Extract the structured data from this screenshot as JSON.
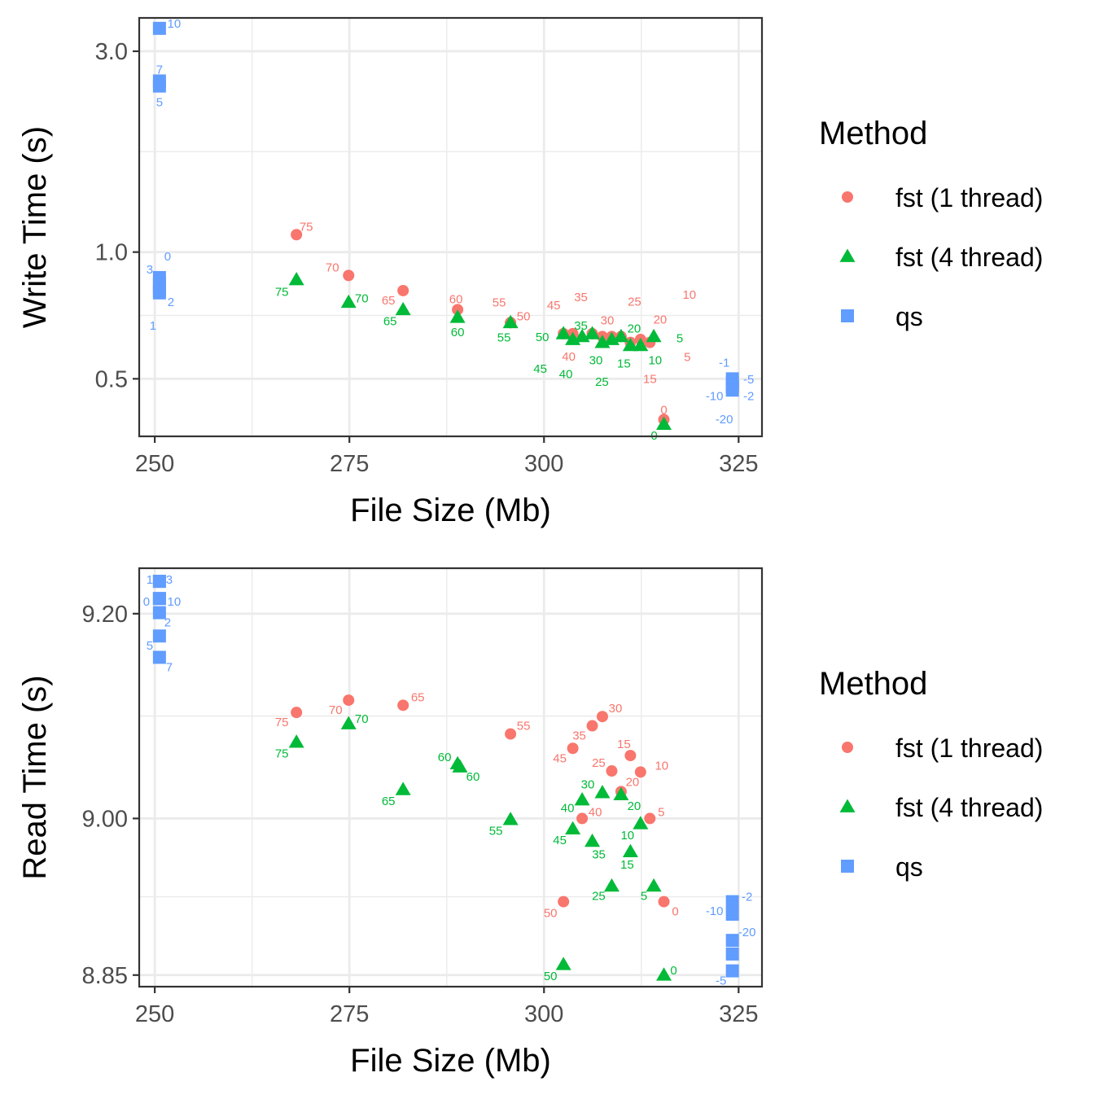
{
  "chart_data": [
    {
      "type": "scatter",
      "title": "",
      "xlabel": "File Size (Mb)",
      "ylabel": "Write Time (s)",
      "scale_y": "log",
      "xlim": [
        248,
        328
      ],
      "ylim": [
        0.365,
        3.6
      ],
      "x_ticks": [
        250,
        275,
        300,
        325
      ],
      "x_tick_labels": [
        "250",
        "275",
        "300",
        "325"
      ],
      "y_ticks": [
        0.5,
        1.0,
        3.0
      ],
      "y_tick_labels": [
        "0.5",
        "1.0",
        "3.0"
      ],
      "grid": true,
      "legend": {
        "title": "Method",
        "position": "right"
      },
      "series": [
        {
          "name": "fst (1 thread)",
          "color": "#F8766D",
          "shape": "circle",
          "points": [
            {
              "x": 268.2,
              "y": 1.1,
              "label": "75",
              "dx": 12,
              "dy": -10
            },
            {
              "x": 274.9,
              "y": 0.88,
              "label": "70",
              "dx": -20,
              "dy": -10
            },
            {
              "x": 281.9,
              "y": 0.81,
              "label": "65",
              "dx": -18,
              "dy": 12
            },
            {
              "x": 288.9,
              "y": 0.73,
              "label": "60",
              "dx": -2,
              "dy": -13
            },
            {
              "x": 295.7,
              "y": 0.68,
              "label": "55",
              "dx": -14,
              "dy": -25
            },
            {
              "x": 295.7,
              "y": 0.68,
              "label": "50",
              "dx": 16,
              "dy": -8
            },
            {
              "x": 302.5,
              "y": 0.64,
              "label": "45",
              "dx": -12,
              "dy": -35
            },
            {
              "x": 303.7,
              "y": 0.64,
              "label": "40",
              "dx": -5,
              "dy": 28
            },
            {
              "x": 306.2,
              "y": 0.64,
              "label": "35",
              "dx": -14,
              "dy": -45
            },
            {
              "x": 307.5,
              "y": 0.63,
              "label": "30",
              "dx": 6,
              "dy": -20
            },
            {
              "x": 308.7,
              "y": 0.63,
              "label": "25",
              "dx": 28,
              "dy": -43
            },
            {
              "x": 309.9,
              "y": 0.63,
              "label": "20",
              "dx": 48,
              "dy": -21
            },
            {
              "x": 311.1,
              "y": 0.61,
              "label": "15",
              "dx": 24,
              "dy": 45
            },
            {
              "x": 312.4,
              "y": 0.62,
              "label": "10",
              "dx": 60,
              "dy": -55
            },
            {
              "x": 313.6,
              "y": 0.61,
              "label": "5",
              "dx": 46,
              "dy": 18
            },
            {
              "x": 315.4,
              "y": 0.4,
              "label": "0",
              "dx": 0,
              "dy": -12
            }
          ]
        },
        {
          "name": "fst (4 thread)",
          "color": "#00BA38",
          "shape": "triangle",
          "points": [
            {
              "x": 268.2,
              "y": 0.86,
              "label": "75",
              "dx": -18,
              "dy": 15
            },
            {
              "x": 274.9,
              "y": 0.76,
              "label": "70",
              "dx": 16,
              "dy": -5
            },
            {
              "x": 281.9,
              "y": 0.73,
              "label": "65",
              "dx": -16,
              "dy": 14
            },
            {
              "x": 288.9,
              "y": 0.7,
              "label": "60",
              "dx": 0,
              "dy": 18
            },
            {
              "x": 295.7,
              "y": 0.68,
              "label": "55",
              "dx": -8,
              "dy": 18
            },
            {
              "x": 302.5,
              "y": 0.64,
              "label": "50",
              "dx": -26,
              "dy": 4
            },
            {
              "x": 303.7,
              "y": 0.62,
              "label": "45",
              "dx": -40,
              "dy": 36
            },
            {
              "x": 304.9,
              "y": 0.63,
              "label": "40",
              "dx": -20,
              "dy": 46
            },
            {
              "x": 306.2,
              "y": 0.64,
              "label": "35",
              "dx": -14,
              "dy": -10
            },
            {
              "x": 307.5,
              "y": 0.61,
              "label": "30",
              "dx": -8,
              "dy": 22
            },
            {
              "x": 308.7,
              "y": 0.62,
              "label": "25",
              "dx": -12,
              "dy": 52
            },
            {
              "x": 309.9,
              "y": 0.63,
              "label": "20",
              "dx": 16,
              "dy": -10
            },
            {
              "x": 311.1,
              "y": 0.6,
              "label": "15",
              "dx": -8,
              "dy": 22
            },
            {
              "x": 312.4,
              "y": 0.6,
              "label": "10",
              "dx": 18,
              "dy": 18
            },
            {
              "x": 314.1,
              "y": 0.63,
              "label": "5",
              "dx": 32,
              "dy": 2
            },
            {
              "x": 315.4,
              "y": 0.39,
              "label": "0",
              "dx": -12,
              "dy": 14
            }
          ]
        },
        {
          "name": "qs",
          "color": "#619CFF",
          "shape": "square",
          "points": [
            {
              "x": 250.6,
              "y": 3.4,
              "label": "10",
              "dx": 18,
              "dy": -6
            },
            {
              "x": 250.6,
              "y": 2.55,
              "label": "7",
              "dx": 0,
              "dy": -14
            },
            {
              "x": 250.6,
              "y": 2.48,
              "label": "5",
              "dx": 0,
              "dy": 20
            },
            {
              "x": 250.6,
              "y": 0.87,
              "label": "3",
              "dx": -12,
              "dy": -10
            },
            {
              "x": 250.6,
              "y": 0.84,
              "label": "0",
              "dx": 10,
              "dy": -34
            },
            {
              "x": 250.6,
              "y": 0.81,
              "label": "2",
              "dx": 14,
              "dy": 14
            },
            {
              "x": 250.6,
              "y": 0.8,
              "label": "1",
              "dx": -8,
              "dy": 40
            },
            {
              "x": 324.2,
              "y": 0.5,
              "label": "-1",
              "dx": -10,
              "dy": -20
            },
            {
              "x": 324.2,
              "y": 0.49,
              "label": "-5",
              "dx": 20,
              "dy": -4
            },
            {
              "x": 324.2,
              "y": 0.48,
              "label": "-2",
              "dx": 20,
              "dy": 12
            },
            {
              "x": 324.2,
              "y": 0.48,
              "label": "-10",
              "dx": -22,
              "dy": 12
            },
            {
              "x": 324.2,
              "y": 0.47,
              "label": "-20",
              "dx": -10,
              "dy": 36
            }
          ]
        }
      ]
    },
    {
      "type": "scatter",
      "title": "",
      "xlabel": "File Size (Mb)",
      "ylabel": "Read Time (s)",
      "scale_y": "log",
      "xlim": [
        248,
        328
      ],
      "ylim": [
        8.839,
        9.245
      ],
      "x_ticks": [
        250,
        275,
        300,
        325
      ],
      "x_tick_labels": [
        "250",
        "275",
        "300",
        "325"
      ],
      "y_ticks": [
        8.85,
        9.0,
        9.2
      ],
      "y_tick_labels": [
        "8.85",
        "9.00",
        "9.20"
      ],
      "grid": true,
      "legend": {
        "title": "Method",
        "position": "right"
      },
      "series": [
        {
          "name": "fst (1 thread)",
          "color": "#F8766D",
          "shape": "circle",
          "points": [
            {
              "x": 268.2,
              "y": 9.103,
              "label": "75",
              "dx": -18,
              "dy": 12
            },
            {
              "x": 274.9,
              "y": 9.115,
              "label": "70",
              "dx": -16,
              "dy": 12
            },
            {
              "x": 281.9,
              "y": 9.11,
              "label": "65",
              "dx": 18,
              "dy": -10
            },
            {
              "x": 295.7,
              "y": 9.082,
              "label": "55",
              "dx": 16,
              "dy": -10
            },
            {
              "x": 303.7,
              "y": 9.068,
              "label": "45",
              "dx": -16,
              "dy": 12
            },
            {
              "x": 306.2,
              "y": 9.09,
              "label": "35",
              "dx": -16,
              "dy": 12
            },
            {
              "x": 307.5,
              "y": 9.099,
              "label": "30",
              "dx": 16,
              "dy": -10
            },
            {
              "x": 308.7,
              "y": 9.046,
              "label": "25",
              "dx": -16,
              "dy": -10
            },
            {
              "x": 309.9,
              "y": 9.026,
              "label": "20",
              "dx": 14,
              "dy": -12
            },
            {
              "x": 311.1,
              "y": 9.061,
              "label": "15",
              "dx": -8,
              "dy": -14
            },
            {
              "x": 312.4,
              "y": 9.045,
              "label": "10",
              "dx": 26,
              "dy": -8
            },
            {
              "x": 313.6,
              "y": 9.0,
              "label": "5",
              "dx": 14,
              "dy": -8
            },
            {
              "x": 304.9,
              "y": 9.0,
              "label": "40",
              "dx": 16,
              "dy": -8
            },
            {
              "x": 302.5,
              "y": 8.92,
              "label": "50",
              "dx": -16,
              "dy": 14
            },
            {
              "x": 315.4,
              "y": 8.92,
              "label": "0",
              "dx": 14,
              "dy": 12
            }
          ]
        },
        {
          "name": "fst (4 thread)",
          "color": "#00BA38",
          "shape": "triangle",
          "points": [
            {
              "x": 268.2,
              "y": 9.074,
              "label": "75",
              "dx": -18,
              "dy": 14
            },
            {
              "x": 274.9,
              "y": 9.092,
              "label": "70",
              "dx": 16,
              "dy": -6
            },
            {
              "x": 281.9,
              "y": 9.028,
              "label": "65",
              "dx": -18,
              "dy": 14
            },
            {
              "x": 288.9,
              "y": 9.053,
              "label": "60",
              "dx": -16,
              "dy": -8
            },
            {
              "x": 289.2,
              "y": 9.05,
              "label": "60",
              "dx": 16,
              "dy": 12
            },
            {
              "x": 295.7,
              "y": 8.999,
              "label": "55",
              "dx": -18,
              "dy": 14
            },
            {
              "x": 302.5,
              "y": 8.86,
              "label": "50",
              "dx": -16,
              "dy": 14
            },
            {
              "x": 303.7,
              "y": 8.99,
              "label": "45",
              "dx": -16,
              "dy": 14
            },
            {
              "x": 304.9,
              "y": 9.018,
              "label": "40",
              "dx": -18,
              "dy": 10
            },
            {
              "x": 306.2,
              "y": 8.978,
              "label": "35",
              "dx": 8,
              "dy": 16
            },
            {
              "x": 307.5,
              "y": 9.025,
              "label": "30",
              "dx": -18,
              "dy": -10
            },
            {
              "x": 308.7,
              "y": 8.935,
              "label": "25",
              "dx": -16,
              "dy": 12
            },
            {
              "x": 309.9,
              "y": 9.023,
              "label": "20",
              "dx": 16,
              "dy": 14
            },
            {
              "x": 311.1,
              "y": 8.968,
              "label": "15",
              "dx": -4,
              "dy": 16
            },
            {
              "x": 312.4,
              "y": 8.995,
              "label": "10",
              "dx": -16,
              "dy": 14
            },
            {
              "x": 314.1,
              "y": 8.935,
              "label": "5",
              "dx": -12,
              "dy": 12
            },
            {
              "x": 315.4,
              "y": 8.85,
              "label": "0",
              "dx": 12,
              "dy": -6
            }
          ]
        },
        {
          "name": "qs",
          "color": "#619CFF",
          "shape": "square",
          "points": [
            {
              "x": 250.6,
              "y": 9.232,
              "label": "1",
              "dx": -12,
              "dy": -2
            },
            {
              "x": 250.6,
              "y": 9.232,
              "label": "3",
              "dx": 12,
              "dy": -2
            },
            {
              "x": 250.6,
              "y": 9.215,
              "label": "0",
              "dx": -16,
              "dy": 4
            },
            {
              "x": 250.6,
              "y": 9.215,
              "label": "10",
              "dx": 18,
              "dy": 4
            },
            {
              "x": 250.6,
              "y": 9.201,
              "label": "2",
              "dx": 10,
              "dy": 12
            },
            {
              "x": 250.6,
              "y": 9.178,
              "label": "5",
              "dx": -12,
              "dy": 12
            },
            {
              "x": 250.6,
              "y": 9.157,
              "label": "7",
              "dx": 12,
              "dy": 12
            },
            {
              "x": 324.2,
              "y": 8.92,
              "label": "-2",
              "dx": 18,
              "dy": -6
            },
            {
              "x": 324.2,
              "y": 8.908,
              "label": "-10",
              "dx": -22,
              "dy": -4
            },
            {
              "x": 324.2,
              "y": 8.883,
              "label": "-20",
              "dx": 18,
              "dy": -10
            },
            {
              "x": 324.2,
              "y": 8.87,
              "label": "-1",
              "dx": 0,
              "dy": 18
            },
            {
              "x": 324.2,
              "y": 8.854,
              "label": "-5",
              "dx": -14,
              "dy": 12
            }
          ]
        }
      ]
    }
  ]
}
